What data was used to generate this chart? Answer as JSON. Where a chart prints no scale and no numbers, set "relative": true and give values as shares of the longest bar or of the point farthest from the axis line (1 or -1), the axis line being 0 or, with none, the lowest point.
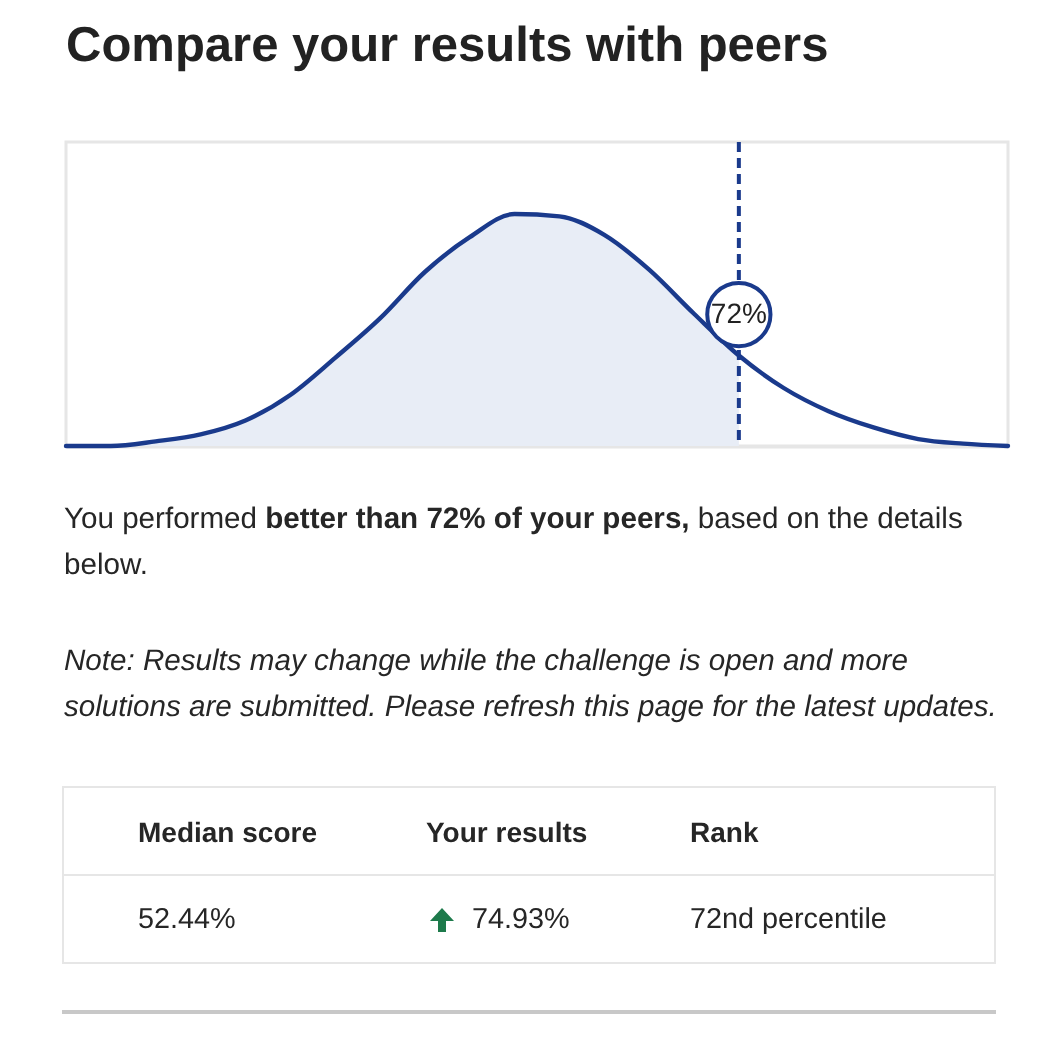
{
  "chart_data": {
    "type": "line",
    "title": "Compare your results with peers",
    "relative": true,
    "categories": [
      null,
      null,
      null,
      null,
      null,
      null,
      null,
      null,
      null,
      null,
      null,
      null,
      null,
      null,
      null,
      null,
      null,
      null,
      null,
      null,
      null,
      null
    ],
    "series": [
      {
        "type": "area",
        "color": "#e8edf6",
        "values": [
          0,
          0,
          0.02,
          0.05,
          0.11,
          0.22,
          0.38,
          0.55,
          0.75,
          0.9,
          1.0,
          0.99,
          0.91,
          0.76,
          0.57,
          0.39,
          null,
          null,
          null,
          null,
          null,
          null
        ]
      },
      {
        "color": "#1a3a8c",
        "values": [
          0,
          0,
          0.02,
          0.05,
          0.11,
          0.22,
          0.38,
          0.55,
          0.75,
          0.9,
          1.0,
          0.99,
          0.91,
          0.76,
          0.57,
          0.39,
          0.25,
          0.15,
          0.08,
          0.03,
          0.01,
          0
        ]
      }
    ],
    "annotations": [
      {
        "text": "72%"
      },
      "You performed",
      "better than 72% of your peers,",
      "based on the details below.",
      "Note: Results may change while the challenge is open and more solutions are submitted. Please refresh this page for the latest updates.",
      "Median score",
      "Your results",
      "Rank",
      "52.44%",
      "74.93%",
      "72nd percentile"
    ]
  }
}
